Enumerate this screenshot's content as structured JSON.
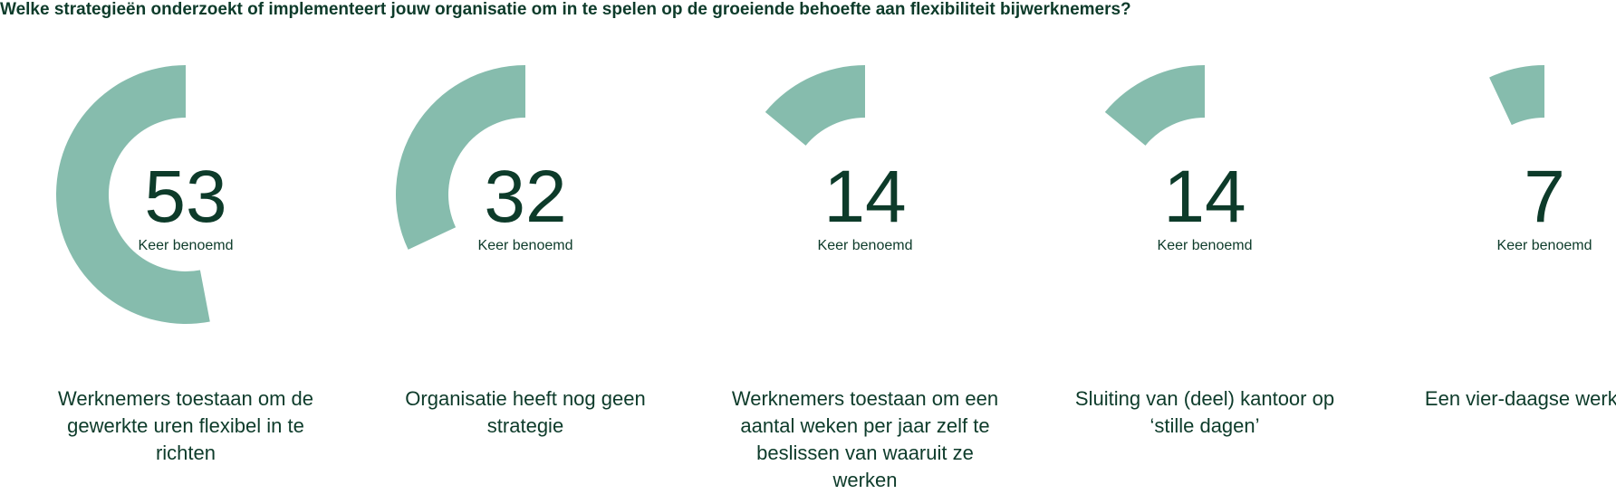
{
  "chart_data": {
    "type": "radial-bar",
    "title": "Welke strategieën onderzoekt of implementeert jouw organisatie om in te spelen op de groeiende behoefte aan flexibiliteit bijwerknemers?",
    "categories": [
      "Werknemers toestaan om de gewerkte uren flexibel in te richten",
      "Organisatie heeft nog geen strategie",
      "Werknemers toestaan om een aantal weken per jaar zelf te beslissen van waaruit ze werken",
      "Sluiting van (deel) kantoor op ‘stille dagen’",
      "Een vier-daagse werkweek"
    ],
    "values": [
      53,
      32,
      14,
      14,
      7
    ],
    "unit_label": "Keer benoemd",
    "ylim": [
      0,
      100
    ],
    "color": "#86bcad"
  }
}
